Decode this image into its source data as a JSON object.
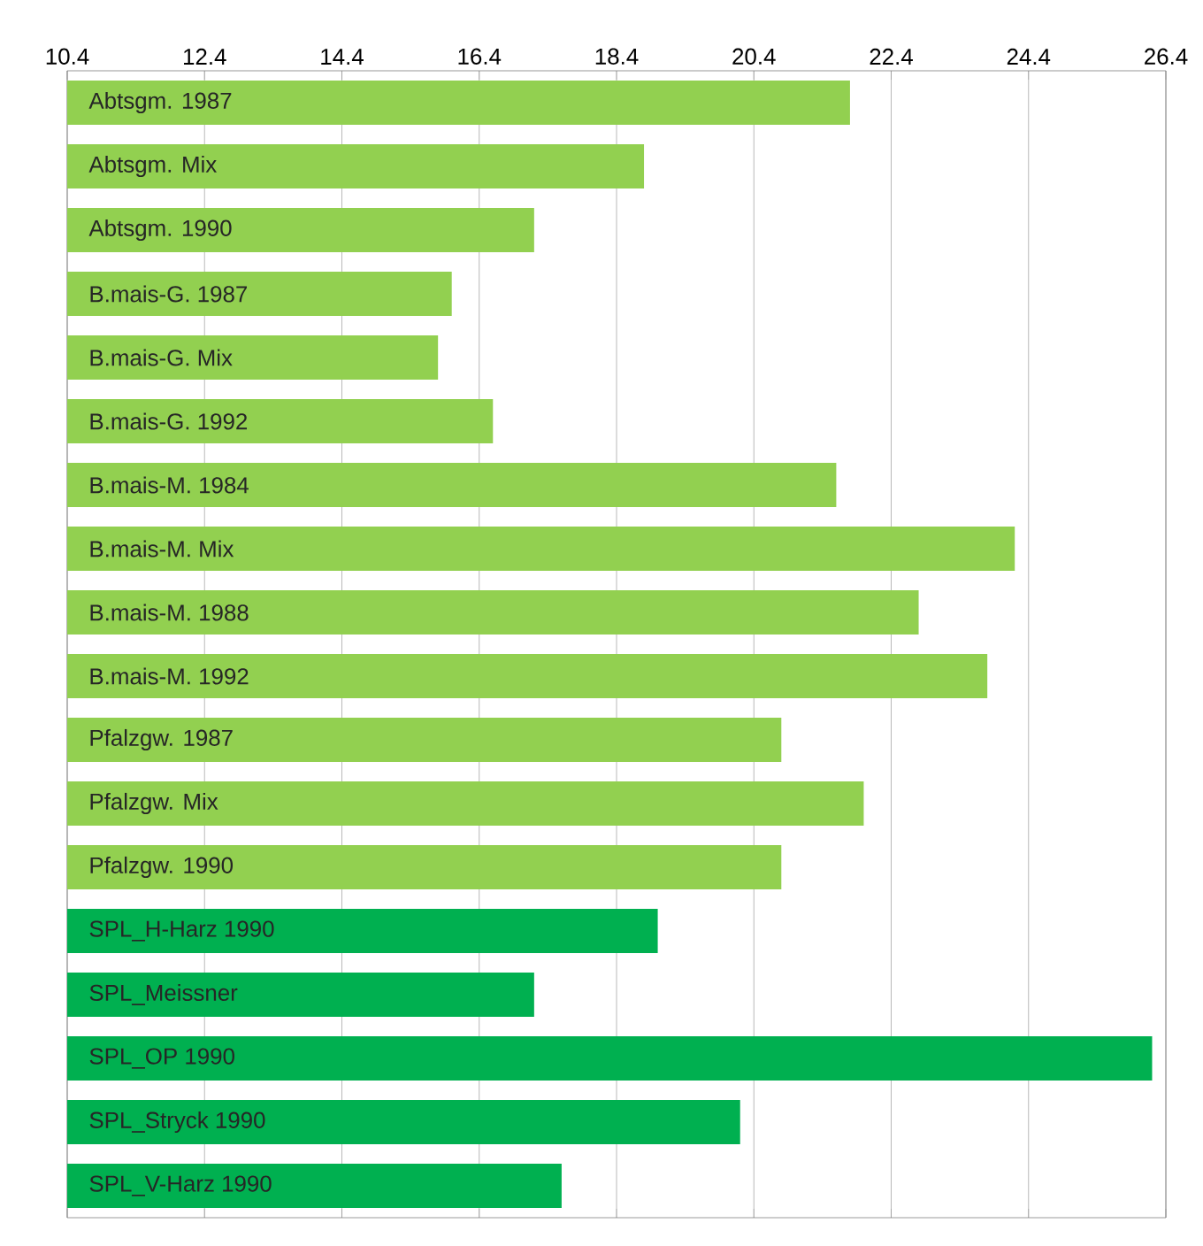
{
  "chart_data": {
    "type": "bar",
    "orientation": "horizontal",
    "categories": [
      "Abtsgm. 1987",
      "Abtsgm. Mix",
      "Abtsgm. 1990",
      "B.mais-G. 1987",
      "B.mais-G. Mix",
      "B.mais-G. 1992",
      "B.mais-M. 1984",
      "B.mais-M. Mix",
      "B.mais-M. 1988",
      "B.mais-M. 1992",
      "Pfalzgw. 1987",
      "Pfalzgw. Mix",
      "Pfalzgw. 1990",
      "SPL_H-Harz 1990",
      "SPL_Meissner",
      "SPL_OP 1990",
      "SPL_Stryck 1990",
      "SPL_V-Harz 1990"
    ],
    "values": [
      21.8,
      18.8,
      17.2,
      16.0,
      15.8,
      16.6,
      21.6,
      24.2,
      22.8,
      23.8,
      20.8,
      22.0,
      20.8,
      19.0,
      17.2,
      26.2,
      20.2,
      17.6
    ],
    "colors": [
      "#92d050",
      "#92d050",
      "#92d050",
      "#92d050",
      "#92d050",
      "#92d050",
      "#92d050",
      "#92d050",
      "#92d050",
      "#92d050",
      "#92d050",
      "#92d050",
      "#92d050",
      "#00b050",
      "#00b050",
      "#00b050",
      "#00b050",
      "#00b050"
    ],
    "xlim": [
      10.4,
      26.4
    ],
    "xticks": [
      10.4,
      12.4,
      14.4,
      16.4,
      18.4,
      20.4,
      22.4,
      24.4,
      26.4
    ],
    "grid": "x"
  }
}
